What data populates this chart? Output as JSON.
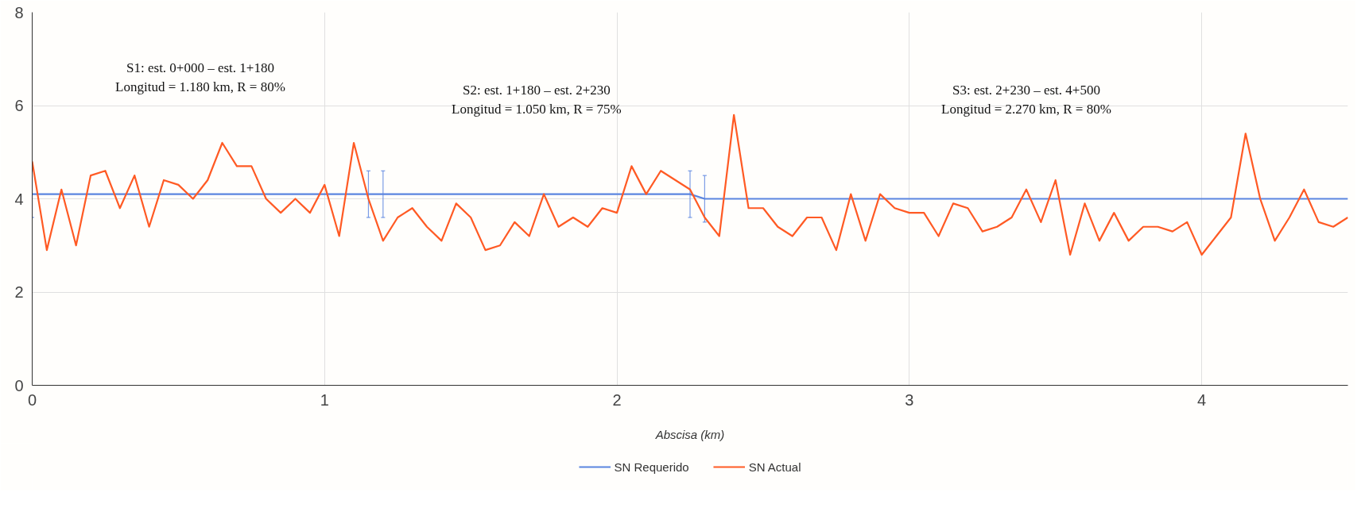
{
  "chart_data": {
    "type": "line",
    "xlabel": "Abscisa (km)",
    "xlim": [
      0,
      4.5
    ],
    "xticks": [
      0,
      1,
      2,
      3,
      4
    ],
    "ylim": [
      0,
      8
    ],
    "yticks": [
      0,
      2,
      4,
      6,
      8
    ],
    "grid": true,
    "legend": "bottom",
    "line_style": "solid",
    "series": [
      {
        "name": "SN Requerido",
        "color": "#5b85e0",
        "x": [
          0,
          1.15,
          1.2,
          2.25,
          2.3,
          4.5
        ],
        "values": [
          4.1,
          4.1,
          4.1,
          4.1,
          4.0,
          4.0
        ],
        "errors": [
          0.5,
          0.5,
          0.5,
          0.5,
          0.5,
          null
        ]
      },
      {
        "name": "SN Actual",
        "color": "#ff5a24",
        "x": [
          0,
          0.05,
          0.1,
          0.15,
          0.2,
          0.25,
          0.3,
          0.35,
          0.4,
          0.45,
          0.5,
          0.55,
          0.6,
          0.65,
          0.7,
          0.75,
          0.8,
          0.85,
          0.9,
          0.95,
          1.0,
          1.05,
          1.1,
          1.15,
          1.2,
          1.25,
          1.3,
          1.35,
          1.4,
          1.45,
          1.5,
          1.55,
          1.6,
          1.65,
          1.7,
          1.75,
          1.8,
          1.85,
          1.9,
          1.95,
          2.0,
          2.05,
          2.1,
          2.15,
          2.2,
          2.25,
          2.3,
          2.35,
          2.4,
          2.45,
          2.5,
          2.55,
          2.6,
          2.65,
          2.7,
          2.75,
          2.8,
          2.85,
          2.9,
          2.95,
          3.0,
          3.05,
          3.1,
          3.15,
          3.2,
          3.25,
          3.3,
          3.35,
          3.4,
          3.45,
          3.5,
          3.55,
          3.6,
          3.65,
          3.7,
          3.75,
          3.8,
          3.85,
          3.9,
          3.95,
          4.0,
          4.05,
          4.1,
          4.15,
          4.2,
          4.25,
          4.3,
          4.35,
          4.4,
          4.45,
          4.5
        ],
        "values": [
          4.8,
          2.9,
          4.2,
          3.0,
          4.5,
          4.6,
          3.8,
          4.5,
          3.4,
          4.4,
          4.3,
          4.0,
          4.4,
          5.2,
          4.7,
          4.7,
          4.0,
          3.7,
          4.0,
          3.7,
          4.3,
          3.2,
          5.2,
          4.0,
          3.1,
          3.6,
          3.8,
          3.4,
          3.1,
          3.9,
          3.6,
          2.9,
          3.0,
          3.5,
          3.2,
          4.1,
          3.4,
          3.6,
          3.4,
          3.8,
          3.7,
          4.7,
          4.1,
          4.6,
          4.4,
          4.2,
          3.6,
          3.2,
          5.8,
          3.8,
          3.8,
          3.4,
          3.2,
          3.6,
          3.6,
          2.9,
          4.1,
          3.1,
          4.1,
          3.8,
          3.7,
          3.7,
          3.2,
          3.9,
          3.8,
          3.3,
          3.4,
          3.6,
          4.2,
          3.5,
          4.4,
          2.8,
          3.9,
          3.1,
          3.7,
          3.1,
          3.4,
          3.4,
          3.3,
          3.5,
          2.8,
          3.2,
          3.6,
          5.4,
          4.0,
          3.1,
          3.6,
          4.2,
          3.5,
          3.4,
          3.6
        ]
      }
    ],
    "annotations": [
      "S1: est. 0+000 – est. 1+180\nLongitud = 1.180 km, R = 80%",
      "S2: est. 1+180 – est. 2+230\nLongitud = 1.050 km, R = 75%",
      "S3: est. 2+230 – est. 4+500\nLongitud = 2.270 km, R = 80%"
    ]
  }
}
